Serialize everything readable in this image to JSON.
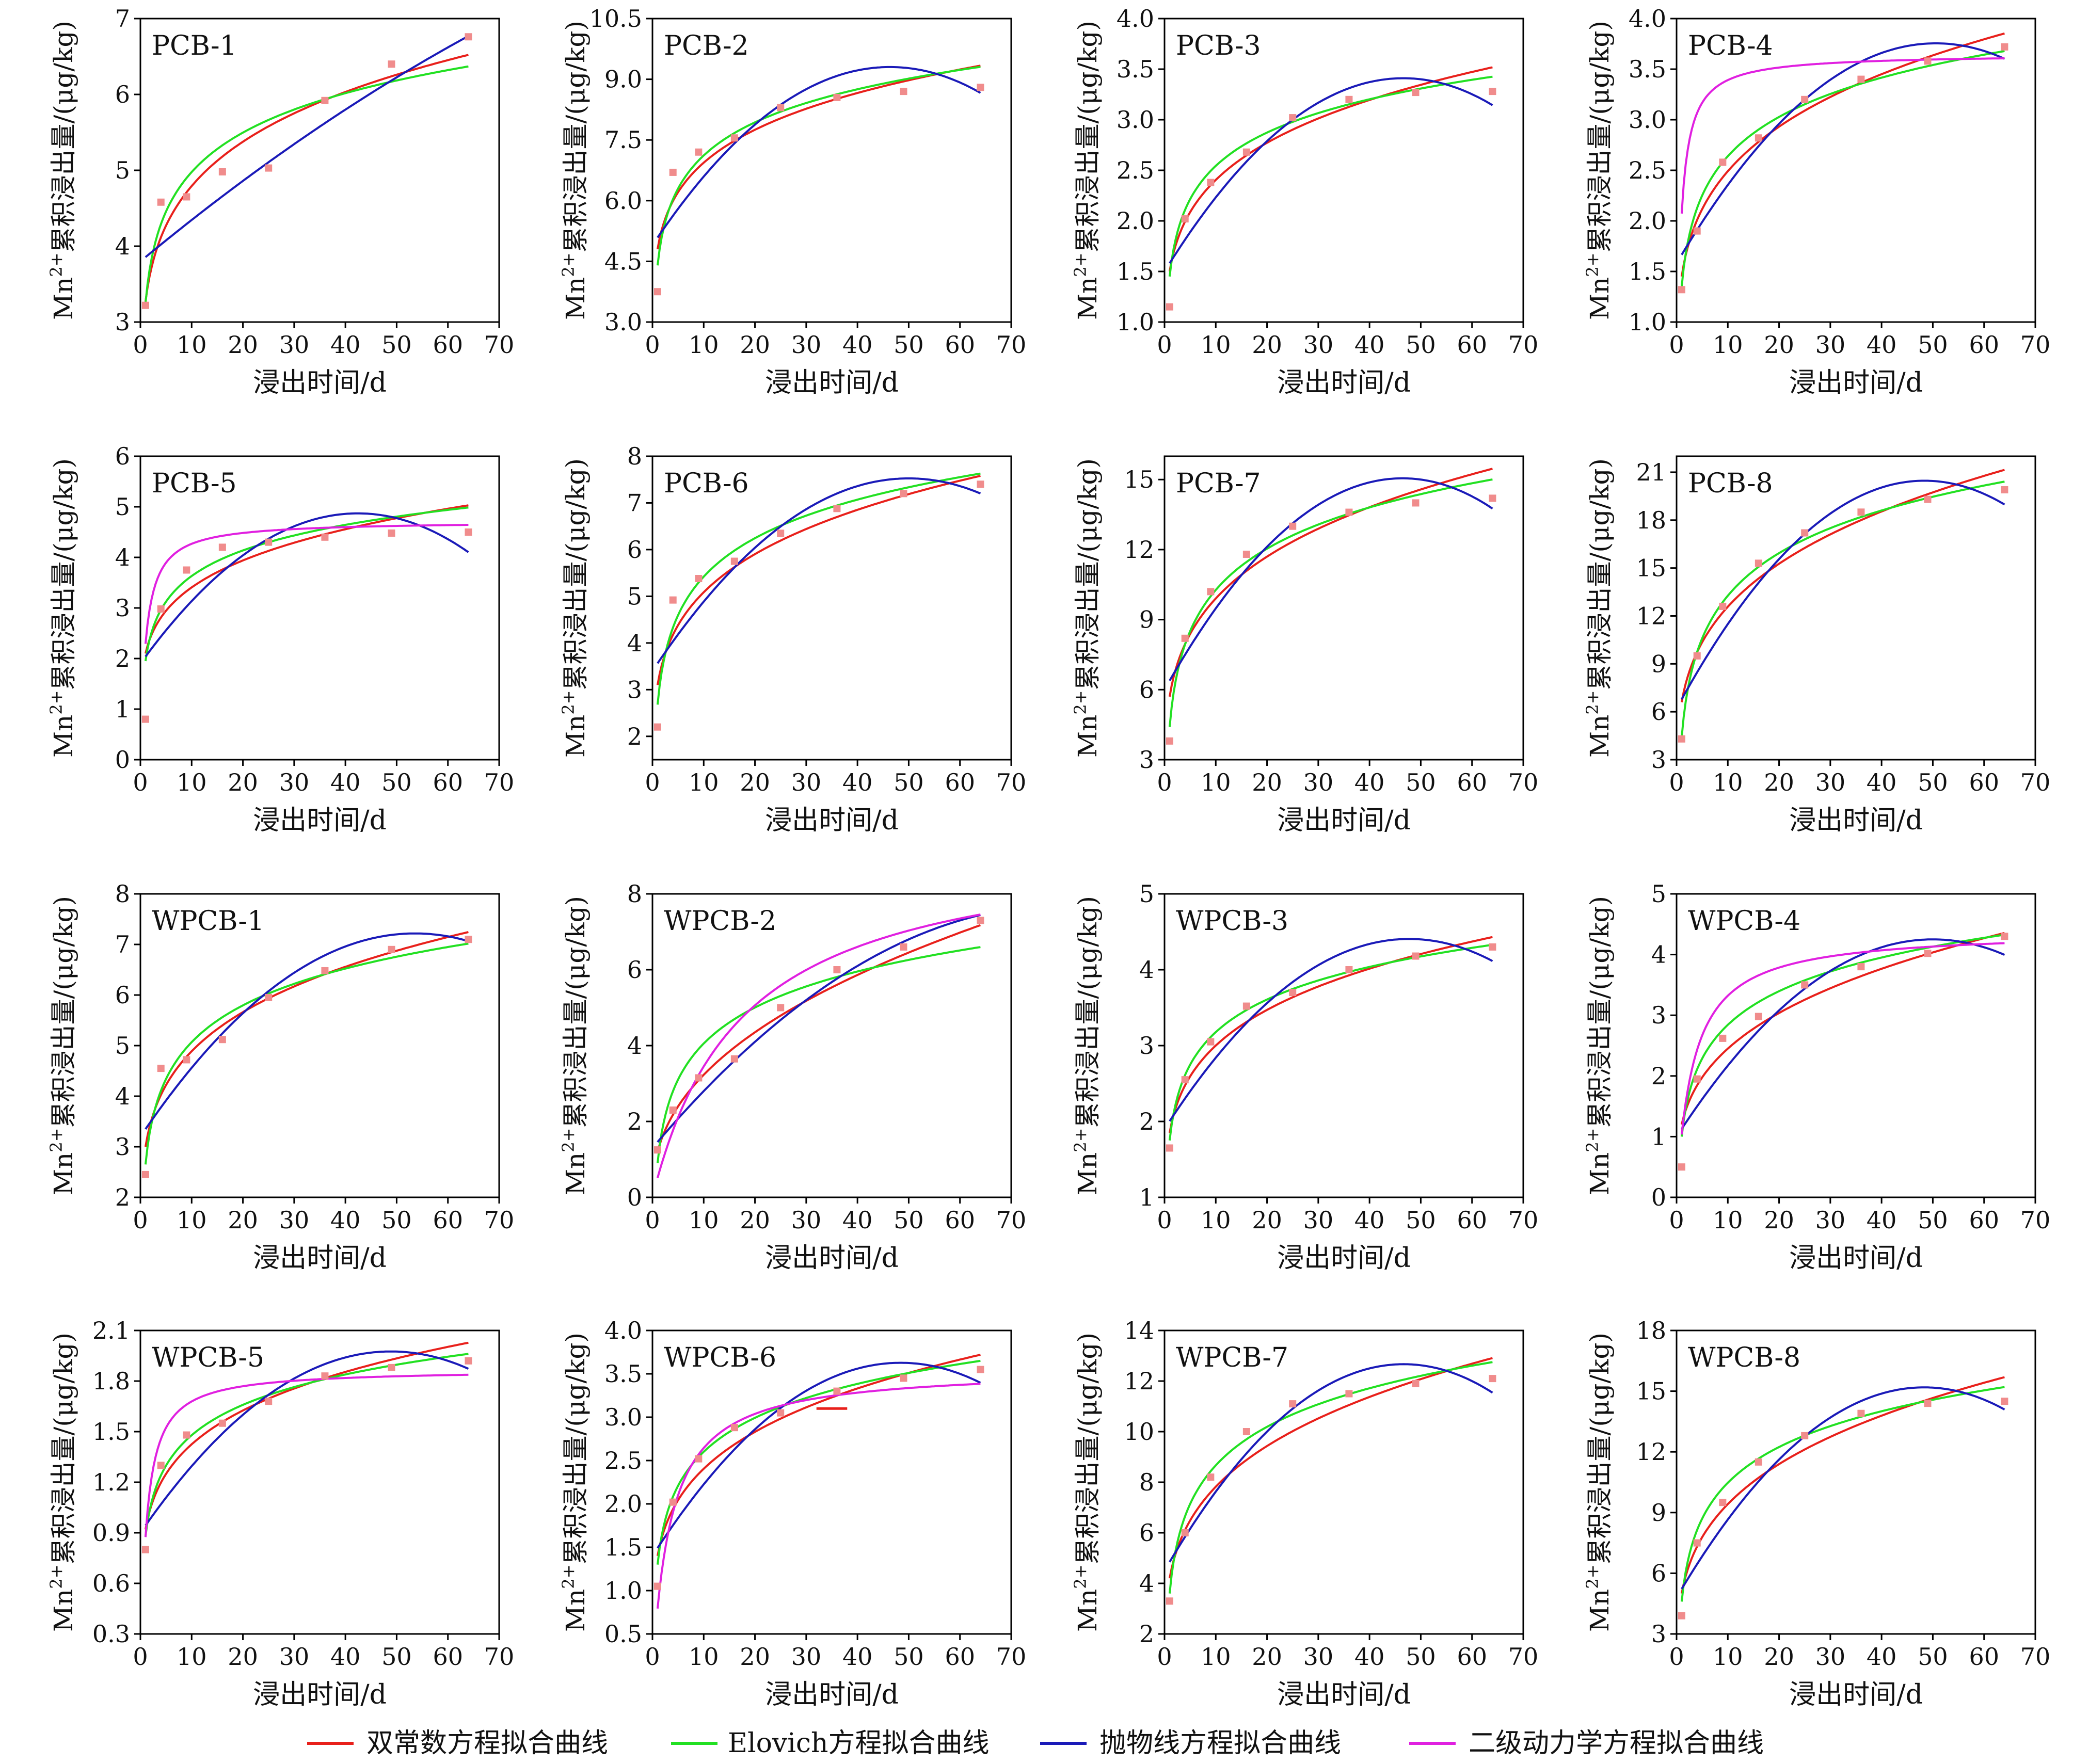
{
  "figure": {
    "legend": [
      {
        "label": "双常数方程拟合曲线",
        "color": "#e8201b"
      },
      {
        "label": "Elovich方程拟合曲线",
        "color": "#22e022"
      },
      {
        "label": "抛物线方程拟合曲线",
        "color": "#1a1ab8"
      },
      {
        "label": "二级动力学方程拟合曲线",
        "color": "#e020e0"
      }
    ],
    "point_color": "#f08c8c"
  },
  "chart_data": [
    {
      "type": "scatter",
      "title": "PCB-1",
      "xlabel": "浸出时间/d",
      "ylabel_main": "Mn",
      "ylabel_sup": "2+",
      "ylabel_rest": "累积浸出量/(μg/kg)",
      "xlim": [
        0,
        70
      ],
      "xticks": [
        0,
        10,
        20,
        30,
        40,
        50,
        60,
        70
      ],
      "ylim": [
        3,
        7
      ],
      "yticks": [
        "3",
        "4",
        "5",
        "6",
        "7"
      ],
      "x": [
        1,
        4,
        9,
        16,
        25,
        36,
        49,
        64
      ],
      "y": [
        3.22,
        4.58,
        4.65,
        4.98,
        5.03,
        5.92,
        6.4,
        6.76
      ],
      "fits": [
        {
          "series": "双常数方程拟合曲线",
          "model": "power",
          "a": 3.27,
          "b": 0.166
        },
        {
          "series": "Elovich方程拟合曲线",
          "model": "log",
          "a": 3.25,
          "b": 0.75
        },
        {
          "series": "抛物线方程拟合曲线",
          "model": "quad",
          "a": 3.8,
          "b": 0.056,
          "c": -0.00015
        }
      ]
    },
    {
      "type": "scatter",
      "title": "PCB-2",
      "xlabel": "浸出时间/d",
      "ylabel_main": "Mn",
      "ylabel_sup": "2+",
      "ylabel_rest": "累积浸出量/(μg/kg)",
      "xlim": [
        0,
        70
      ],
      "xticks": [
        0,
        10,
        20,
        30,
        40,
        50,
        60,
        70
      ],
      "ylim": [
        3,
        10.5
      ],
      "yticks": [
        "3.0",
        "4.5",
        "6.0",
        "7.5",
        "9.0",
        "10.5"
      ],
      "x": [
        1,
        4,
        9,
        16,
        25,
        36,
        49,
        64
      ],
      "y": [
        3.75,
        6.7,
        7.2,
        7.55,
        8.3,
        8.55,
        8.7,
        8.8
      ],
      "fits": [
        {
          "series": "双常数方程拟合曲线",
          "model": "power",
          "a": 4.8,
          "b": 0.16
        },
        {
          "series": "Elovich方程拟合曲线",
          "model": "log",
          "a": 4.4,
          "b": 1.18
        },
        {
          "series": "抛物线方程拟合曲线",
          "model": "quad",
          "a": 4.9,
          "b": 0.19,
          "c": -0.00205
        }
      ]
    },
    {
      "type": "scatter",
      "title": "PCB-3",
      "xlabel": "浸出时间/d",
      "ylabel_main": "Mn",
      "ylabel_sup": "2+",
      "ylabel_rest": "累积浸出量/(μg/kg)",
      "xlim": [
        0,
        70
      ],
      "xticks": [
        0,
        10,
        20,
        30,
        40,
        50,
        60,
        70
      ],
      "ylim": [
        1,
        4
      ],
      "yticks": [
        "1.0",
        "1.5",
        "2.0",
        "2.5",
        "3.0",
        "3.5",
        "4.0"
      ],
      "x": [
        1,
        4,
        9,
        16,
        25,
        36,
        49,
        64
      ],
      "y": [
        1.15,
        2.02,
        2.38,
        2.68,
        3.02,
        3.2,
        3.27,
        3.28
      ],
      "fits": [
        {
          "series": "双常数方程拟合曲线",
          "model": "power",
          "a": 1.5,
          "b": 0.205
        },
        {
          "series": "Elovich方程拟合曲线",
          "model": "log",
          "a": 1.45,
          "b": 0.475
        },
        {
          "series": "抛物线方程拟合曲线",
          "model": "quad",
          "a": 1.5,
          "b": 0.082,
          "c": -0.00088
        }
      ]
    },
    {
      "type": "scatter",
      "title": "PCB-4",
      "xlabel": "浸出时间/d",
      "ylabel_main": "Mn",
      "ylabel_sup": "2+",
      "ylabel_rest": "累积浸出量/(μg/kg)",
      "xlim": [
        0,
        70
      ],
      "xticks": [
        0,
        10,
        20,
        30,
        40,
        50,
        60,
        70
      ],
      "ylim": [
        1,
        4
      ],
      "yticks": [
        "1.0",
        "1.5",
        "2.0",
        "2.5",
        "3.0",
        "3.5",
        "4.0"
      ],
      "x": [
        1,
        4,
        9,
        16,
        25,
        36,
        49,
        64
      ],
      "y": [
        1.32,
        1.9,
        2.58,
        2.82,
        3.2,
        3.4,
        3.58,
        3.72
      ],
      "fits": [
        {
          "series": "双常数方程拟合曲线",
          "model": "power",
          "a": 1.45,
          "b": 0.235
        },
        {
          "series": "Elovich方程拟合曲线",
          "model": "log",
          "a": 1.35,
          "b": 0.56
        },
        {
          "series": "抛物线方程拟合曲线",
          "model": "quad",
          "a": 1.58,
          "b": 0.086,
          "c": -0.00085
        },
        {
          "series": "二级动力学方程拟合曲线",
          "model": "pso",
          "qe": 3.65,
          "k": 0.36
        }
      ]
    },
    {
      "type": "scatter",
      "title": "PCB-5",
      "xlabel": "浸出时间/d",
      "ylabel_main": "Mn",
      "ylabel_sup": "2+",
      "ylabel_rest": "累积浸出量/(μg/kg)",
      "xlim": [
        0,
        70
      ],
      "xticks": [
        0,
        10,
        20,
        30,
        40,
        50,
        60,
        70
      ],
      "ylim": [
        0,
        6
      ],
      "yticks": [
        "0",
        "1",
        "2",
        "3",
        "4",
        "5",
        "6"
      ],
      "x": [
        1,
        4,
        9,
        16,
        25,
        36,
        49,
        64
      ],
      "y": [
        0.8,
        2.98,
        3.75,
        4.2,
        4.3,
        4.4,
        4.48,
        4.5
      ],
      "fits": [
        {
          "series": "双常数方程拟合曲线",
          "model": "power",
          "a": 2.1,
          "b": 0.21
        },
        {
          "series": "Elovich方程拟合曲线",
          "model": "log",
          "a": 1.95,
          "b": 0.73
        },
        {
          "series": "抛物线方程拟合曲线",
          "model": "quad",
          "a": 1.9,
          "b": 0.14,
          "c": -0.00165
        },
        {
          "series": "二级动力学方程拟合曲线",
          "model": "pso",
          "qe": 4.72,
          "k": 0.2
        }
      ]
    },
    {
      "type": "scatter",
      "title": "PCB-6",
      "xlabel": "浸出时间/d",
      "ylabel_main": "Mn",
      "ylabel_sup": "2+",
      "ylabel_rest": "累积浸出量/(μg/kg)",
      "xlim": [
        0,
        70
      ],
      "xticks": [
        0,
        10,
        20,
        30,
        40,
        50,
        60,
        70
      ],
      "ylim": [
        1.5,
        8
      ],
      "yticks": [
        "2",
        "3",
        "4",
        "5",
        "6",
        "7",
        "8"
      ],
      "x": [
        1,
        4,
        9,
        16,
        25,
        36,
        49,
        64
      ],
      "y": [
        2.2,
        4.92,
        5.38,
        5.75,
        6.35,
        6.88,
        7.2,
        7.4
      ],
      "fits": [
        {
          "series": "双常数方程拟合曲线",
          "model": "power",
          "a": 3.1,
          "b": 0.215
        },
        {
          "series": "Elovich方程拟合曲线",
          "model": "log",
          "a": 2.68,
          "b": 1.19
        },
        {
          "series": "抛物线方程拟合曲线",
          "model": "quad",
          "a": 3.4,
          "b": 0.165,
          "c": -0.00165
        }
      ]
    },
    {
      "type": "scatter",
      "title": "PCB-7",
      "xlabel": "浸出时间/d",
      "ylabel_main": "Mn",
      "ylabel_sup": "2+",
      "ylabel_rest": "累积浸出量/(μg/kg)",
      "xlim": [
        0,
        70
      ],
      "xticks": [
        0,
        10,
        20,
        30,
        40,
        50,
        60,
        70
      ],
      "ylim": [
        3,
        16
      ],
      "yticks": [
        "3",
        "6",
        "9",
        "12",
        "15"
      ],
      "x": [
        1,
        4,
        9,
        16,
        25,
        36,
        49,
        64
      ],
      "y": [
        3.8,
        8.2,
        10.2,
        11.8,
        13.0,
        13.6,
        14.0,
        14.2
      ],
      "fits": [
        {
          "series": "双常数方程拟合曲线",
          "model": "power",
          "a": 5.7,
          "b": 0.24
        },
        {
          "series": "Elovich方程拟合曲线",
          "model": "log",
          "a": 4.4,
          "b": 2.55
        },
        {
          "series": "抛物线方程拟合曲线",
          "model": "quad",
          "a": 6.0,
          "b": 0.39,
          "c": -0.0042
        }
      ]
    },
    {
      "type": "scatter",
      "title": "PCB-8",
      "xlabel": "浸出时间/d",
      "ylabel_main": "Mn",
      "ylabel_sup": "2+",
      "ylabel_rest": "累积浸出量/(μg/kg)",
      "xlim": [
        0,
        70
      ],
      "xticks": [
        0,
        10,
        20,
        30,
        40,
        50,
        60,
        70
      ],
      "ylim": [
        3,
        22
      ],
      "yticks": [
        "3",
        "6",
        "9",
        "12",
        "15",
        "18",
        "21"
      ],
      "x": [
        1,
        4,
        9,
        16,
        25,
        36,
        49,
        64
      ],
      "y": [
        4.3,
        9.5,
        12.6,
        15.3,
        17.2,
        18.5,
        19.3,
        19.9
      ],
      "fits": [
        {
          "series": "双常数方程拟合曲线",
          "model": "power",
          "a": 6.6,
          "b": 0.28
        },
        {
          "series": "Elovich方程拟合曲线",
          "model": "log",
          "a": 4.4,
          "b": 3.85
        },
        {
          "series": "抛物线方程拟合曲线",
          "model": "quad",
          "a": 6.2,
          "b": 0.59,
          "c": -0.0061
        }
      ]
    },
    {
      "type": "scatter",
      "title": "WPCB-1",
      "xlabel": "浸出时间/d",
      "ylabel_main": "Mn",
      "ylabel_sup": "2+",
      "ylabel_rest": "累积浸出量/(μg/kg)",
      "xlim": [
        0,
        70
      ],
      "xticks": [
        0,
        10,
        20,
        30,
        40,
        50,
        60,
        70
      ],
      "ylim": [
        2,
        8
      ],
      "yticks": [
        "2",
        "3",
        "4",
        "5",
        "6",
        "7",
        "8"
      ],
      "x": [
        1,
        4,
        9,
        16,
        25,
        36,
        49,
        64
      ],
      "y": [
        2.45,
        4.55,
        4.72,
        5.12,
        5.95,
        6.48,
        6.9,
        7.1
      ],
      "fits": [
        {
          "series": "双常数方程拟合曲线",
          "model": "power",
          "a": 3.0,
          "b": 0.212
        },
        {
          "series": "Elovich方程拟合曲线",
          "model": "log",
          "a": 2.65,
          "b": 1.05
        },
        {
          "series": "抛物线方程拟合曲线",
          "model": "quad",
          "a": 3.2,
          "b": 0.15,
          "c": -0.0014
        }
      ]
    },
    {
      "type": "scatter",
      "title": "WPCB-2",
      "xlabel": "浸出时间/d",
      "ylabel_main": "Mn",
      "ylabel_sup": "2+",
      "ylabel_rest": "累积浸出量/(μg/kg)",
      "xlim": [
        0,
        70
      ],
      "xticks": [
        0,
        10,
        20,
        30,
        40,
        50,
        60,
        70
      ],
      "ylim": [
        0,
        8
      ],
      "yticks": [
        "0",
        "2",
        "4",
        "6",
        "8"
      ],
      "x": [
        1,
        4,
        9,
        16,
        25,
        36,
        49,
        64
      ],
      "y": [
        1.25,
        2.3,
        3.15,
        3.65,
        5.0,
        6.0,
        6.6,
        7.3
      ],
      "fits": [
        {
          "series": "双常数方程拟合曲线",
          "model": "power",
          "a": 1.2,
          "b": 0.43
        },
        {
          "series": "Elovich方程拟合曲线",
          "model": "log",
          "a": 0.9,
          "b": 1.37
        },
        {
          "series": "抛物线方程拟合曲线",
          "model": "quad",
          "a": 1.3,
          "b": 0.16,
          "c": -0.001
        },
        {
          "series": "二级动力学方程拟合曲线",
          "model": "pso",
          "qe": 9.5,
          "k": 0.006
        }
      ]
    },
    {
      "type": "scatter",
      "title": "WPCB-3",
      "xlabel": "浸出时间/d",
      "ylabel_main": "Mn",
      "ylabel_sup": "2+",
      "ylabel_rest": "累积浸出量/(μg/kg)",
      "xlim": [
        0,
        70
      ],
      "xticks": [
        0,
        10,
        20,
        30,
        40,
        50,
        60,
        70
      ],
      "ylim": [
        1,
        5
      ],
      "yticks": [
        "1",
        "2",
        "3",
        "4",
        "5"
      ],
      "x": [
        1,
        4,
        9,
        16,
        25,
        36,
        49,
        64
      ],
      "y": [
        1.65,
        2.55,
        3.05,
        3.52,
        3.7,
        4.0,
        4.18,
        4.3
      ],
      "fits": [
        {
          "series": "双常数方程拟合曲线",
          "model": "power",
          "a": 1.85,
          "b": 0.21
        },
        {
          "series": "Elovich方程拟合曲线",
          "model": "log",
          "a": 1.75,
          "b": 0.62
        },
        {
          "series": "抛物线方程拟合曲线",
          "model": "quad",
          "a": 1.9,
          "b": 0.105,
          "c": -0.0011
        }
      ]
    },
    {
      "type": "scatter",
      "title": "WPCB-4",
      "xlabel": "浸出时间/d",
      "ylabel_main": "Mn",
      "ylabel_sup": "2+",
      "ylabel_rest": "累积浸出量/(μg/kg)",
      "xlim": [
        0,
        70
      ],
      "xticks": [
        0,
        10,
        20,
        30,
        40,
        50,
        60,
        70
      ],
      "ylim": [
        0,
        5
      ],
      "yticks": [
        "0",
        "1",
        "2",
        "3",
        "4",
        "5"
      ],
      "x": [
        1,
        4,
        9,
        16,
        25,
        36,
        49,
        64
      ],
      "y": [
        0.5,
        1.95,
        2.62,
        2.98,
        3.5,
        3.8,
        4.02,
        4.3
      ],
      "fits": [
        {
          "series": "双常数方程拟合曲线",
          "model": "power",
          "a": 1.2,
          "b": 0.31
        },
        {
          "series": "Elovich方程拟合曲线",
          "model": "log",
          "a": 1.0,
          "b": 0.8
        },
        {
          "series": "抛物线方程拟合曲线",
          "model": "quad",
          "a": 1.0,
          "b": 0.13,
          "c": -0.0013
        },
        {
          "series": "二级动力学方程拟合曲线",
          "model": "pso",
          "qe": 4.4,
          "k": 0.07
        }
      ]
    },
    {
      "type": "scatter",
      "title": "WPCB-5",
      "xlabel": "浸出时间/d",
      "ylabel_main": "Mn",
      "ylabel_sup": "2+",
      "ylabel_rest": "累积浸出量/(μg/kg)",
      "xlim": [
        0,
        70
      ],
      "xticks": [
        0,
        10,
        20,
        30,
        40,
        50,
        60,
        70
      ],
      "ylim": [
        0.3,
        2.1
      ],
      "yticks": [
        "0.3",
        "0.6",
        "0.9",
        "1.2",
        "1.5",
        "1.8",
        "2.1"
      ],
      "x": [
        1,
        4,
        9,
        16,
        25,
        36,
        49,
        64
      ],
      "y": [
        0.8,
        1.3,
        1.48,
        1.55,
        1.68,
        1.83,
        1.88,
        1.92
      ],
      "fits": [
        {
          "series": "双常数方程拟合曲线",
          "model": "power",
          "a": 0.92,
          "b": 0.19
        },
        {
          "series": "Elovich方程拟合曲线",
          "model": "log",
          "a": 0.88,
          "b": 0.26
        },
        {
          "series": "抛物线方程拟合曲线",
          "model": "quad",
          "a": 0.9,
          "b": 0.044,
          "c": -0.00045
        },
        {
          "series": "二级动力学方程拟合曲线",
          "model": "pso",
          "qe": 1.87,
          "k": 0.47
        }
      ]
    },
    {
      "type": "scatter",
      "title": "WPCB-6",
      "xlabel": "浸出时间/d",
      "ylabel_main": "Mn",
      "ylabel_sup": "2+",
      "ylabel_rest": "累积浸出量/(μg/kg)",
      "xlim": [
        0,
        70
      ],
      "xticks": [
        0,
        10,
        20,
        30,
        40,
        50,
        60,
        70
      ],
      "ylim": [
        0.5,
        4
      ],
      "yticks": [
        "0.5",
        "1.0",
        "1.5",
        "2.0",
        "2.5",
        "3.0",
        "3.5",
        "4.0"
      ],
      "x": [
        1,
        4,
        9,
        16,
        25,
        36,
        49,
        64
      ],
      "y": [
        1.05,
        2.02,
        2.52,
        2.88,
        3.05,
        3.3,
        3.45,
        3.55
      ],
      "fits": [
        {
          "series": "双常数方程拟合曲线",
          "model": "power",
          "a": 1.4,
          "b": 0.235
        },
        {
          "series": "Elovich方程拟合曲线",
          "model": "log",
          "a": 1.3,
          "b": 0.565
        },
        {
          "series": "抛物线方程拟合曲线",
          "model": "quad",
          "a": 1.4,
          "b": 0.092,
          "c": -0.00095
        },
        {
          "series": "二级动力学方程拟合曲线",
          "model": "pso",
          "qe": 3.57,
          "k": 0.08
        }
      ]
    },
    {
      "type": "scatter",
      "title": "WPCB-7",
      "xlabel": "浸出时间/d",
      "ylabel_main": "Mn",
      "ylabel_sup": "2+",
      "ylabel_rest": "累积浸出量/(μg/kg)",
      "xlim": [
        0,
        70
      ],
      "xticks": [
        0,
        10,
        20,
        30,
        40,
        50,
        60,
        70
      ],
      "ylim": [
        2,
        14
      ],
      "yticks": [
        "2",
        "4",
        "6",
        "8",
        "10",
        "12",
        "14"
      ],
      "x": [
        1,
        4,
        9,
        16,
        25,
        36,
        49,
        64
      ],
      "y": [
        3.3,
        6.0,
        8.2,
        10.0,
        11.1,
        11.5,
        11.9,
        12.1
      ],
      "fits": [
        {
          "series": "双常数方程拟合曲线",
          "model": "power",
          "a": 4.2,
          "b": 0.27
        },
        {
          "series": "Elovich方程拟合曲线",
          "model": "log",
          "a": 3.6,
          "b": 2.2
        },
        {
          "series": "抛物线方程拟合曲线",
          "model": "quad",
          "a": 4.5,
          "b": 0.35,
          "c": -0.00375
        }
      ]
    },
    {
      "type": "scatter",
      "title": "WPCB-8",
      "xlabel": "浸出时间/d",
      "ylabel_main": "Mn",
      "ylabel_sup": "2+",
      "ylabel_rest": "累积浸出量/(μg/kg)",
      "xlim": [
        0,
        70
      ],
      "xticks": [
        0,
        10,
        20,
        30,
        40,
        50,
        60,
        70
      ],
      "ylim": [
        3,
        18
      ],
      "yticks": [
        "3",
        "6",
        "9",
        "12",
        "15",
        "18"
      ],
      "x": [
        1,
        4,
        9,
        16,
        25,
        36,
        49,
        64
      ],
      "y": [
        3.9,
        7.5,
        9.5,
        11.5,
        12.8,
        13.9,
        14.4,
        14.5
      ],
      "fits": [
        {
          "series": "双常数方程拟合曲线",
          "model": "power",
          "a": 5.0,
          "b": 0.275
        },
        {
          "series": "Elovich方程拟合曲线",
          "model": "log",
          "a": 4.6,
          "b": 2.55
        },
        {
          "series": "抛物线方程拟合曲线",
          "model": "quad",
          "a": 4.8,
          "b": 0.43,
          "c": -0.00445
        }
      ]
    }
  ]
}
